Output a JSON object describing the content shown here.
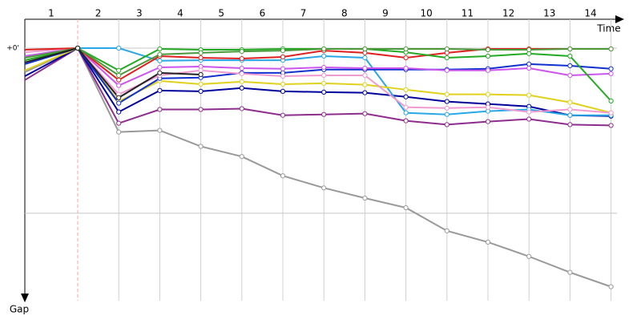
{
  "chart_data": {
    "type": "line",
    "x_label": "Time",
    "y_label": "Gap",
    "x": [
      0,
      1,
      2,
      3,
      4,
      5,
      6,
      7,
      8,
      9,
      10,
      11,
      12,
      13,
      14
    ],
    "xticks": [
      1,
      2,
      3,
      4,
      5,
      6,
      7,
      8,
      9,
      10,
      11,
      12,
      13,
      14
    ],
    "ylim": [
      0,
      91.8
    ],
    "yticks": [
      {
        "value": 0,
        "label": "+0'"
      }
    ],
    "grid_lines": [
      0,
      60
    ],
    "series": [
      {
        "color": "#999999",
        "values": [
          8.7,
          0,
          30.5,
          29.9,
          35.7,
          39.4,
          46.4,
          50.8,
          54.5,
          58,
          66.4,
          70.5,
          75.7,
          81.5,
          86.7
        ]
      },
      {
        "color": "#8e2d8e",
        "values": [
          11.6,
          0,
          27.3,
          22.3,
          22.3,
          22.0,
          24.4,
          24.1,
          23.8,
          26.4,
          27.8,
          26.7,
          25.8,
          27.8,
          28.1
        ]
      },
      {
        "color": "#00009c",
        "values": [
          10.2,
          0,
          23.2,
          15.4,
          15.7,
          14.5,
          15.7,
          16,
          16.2,
          17.7,
          19.4,
          20.3,
          21.2,
          24.4,
          24.7
        ]
      },
      {
        "color": "#2aa7e6",
        "values": [
          2.9,
          0,
          0,
          4.6,
          4.4,
          4.4,
          4.4,
          2.9,
          3.5,
          23.5,
          24.1,
          22.9,
          22.3,
          24.4,
          24.4
        ]
      },
      {
        "color": "#e0d21c",
        "values": [
          8.1,
          0,
          19.4,
          11.9,
          13.1,
          12.2,
          13.1,
          12.8,
          13.3,
          15.1,
          16.8,
          16.8,
          17.1,
          19.7,
          23.5
        ]
      },
      {
        "color": "#1030d0",
        "values": [
          5.8,
          0,
          20,
          11,
          10.7,
          9,
          9,
          7.8,
          7.8,
          7.8,
          7.8,
          7.5,
          5.8,
          6.4,
          7.5
        ]
      },
      {
        "color": "#cc55ee",
        "values": [
          2.9,
          0,
          13.6,
          7,
          6.7,
          7.3,
          7.5,
          7,
          7.3,
          7.3,
          8.1,
          8.1,
          7.3,
          9.9,
          9.3
        ]
      },
      {
        "color": "#f09ad0",
        "values": [
          1.5,
          0,
          16.8,
          9.9,
          8.1,
          9.3,
          10.2,
          9.9,
          9.9,
          21.5,
          21.8,
          21.5,
          23.2,
          22.3,
          23.5
        ]
      },
      {
        "color": "#e02020",
        "values": [
          0.6,
          0,
          11.6,
          2.9,
          3.5,
          3.8,
          3.2,
          0.9,
          1.7,
          3.5,
          1.7,
          0.3,
          0.3,
          0.3,
          0.3
        ]
      },
      {
        "color": "#22aa22",
        "values": [
          4.4,
          0,
          8.1,
          0.3,
          0.6,
          0.6,
          0.3,
          0.3,
          0.3,
          1.5,
          3.5,
          2.9,
          2,
          2.9,
          19.2
        ]
      },
      {
        "color": "#4a9a3a",
        "values": [
          3.5,
          0,
          9.9,
          2.3,
          1.7,
          1.2,
          0.9,
          0.3,
          0.3,
          0.3,
          0.3,
          0.6,
          0.6,
          0.3,
          0.3
        ]
      },
      {
        "color": "#222222",
        "values": [
          5.2,
          0,
          18,
          9,
          9.6,
          null,
          null,
          null,
          null,
          null,
          null,
          null,
          null,
          null,
          null
        ]
      }
    ]
  }
}
